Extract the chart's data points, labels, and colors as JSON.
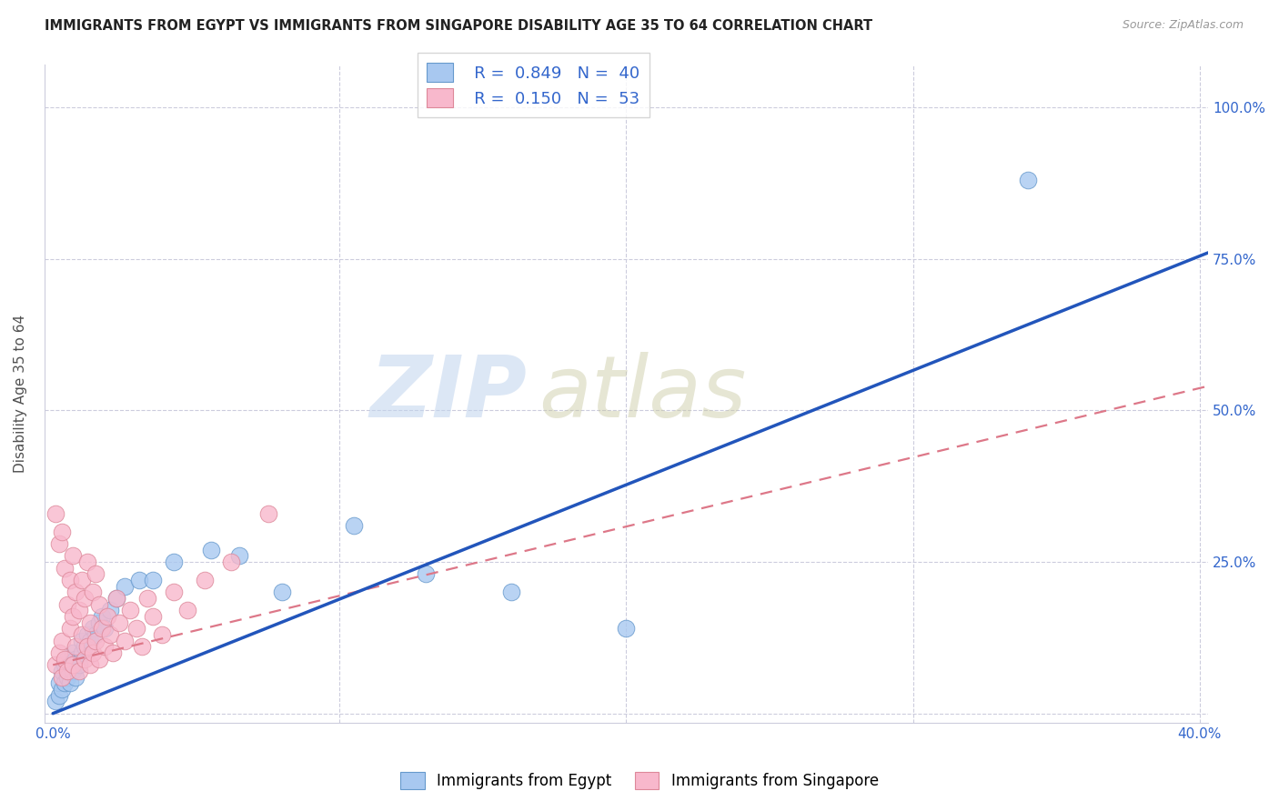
{
  "title": "IMMIGRANTS FROM EGYPT VS IMMIGRANTS FROM SINGAPORE DISABILITY AGE 35 TO 64 CORRELATION CHART",
  "source": "Source: ZipAtlas.com",
  "ylabel": "Disability Age 35 to 64",
  "xlim": [
    -0.003,
    0.403
  ],
  "ylim": [
    -0.015,
    1.07
  ],
  "xticks": [
    0.0,
    0.1,
    0.2,
    0.3,
    0.4
  ],
  "xticklabels": [
    "0.0%",
    "",
    "",
    "",
    "40.0%"
  ],
  "yticks": [
    0.0,
    0.25,
    0.5,
    0.75,
    1.0
  ],
  "yticklabels": [
    "",
    "25.0%",
    "50.0%",
    "75.0%",
    "100.0%"
  ],
  "egypt_color": "#a8c8f0",
  "egypt_edge_color": "#6699cc",
  "singapore_color": "#f8b8cc",
  "singapore_edge_color": "#dd8899",
  "egypt_line_color": "#2255bb",
  "singapore_line_color": "#dd7788",
  "grid_color": "#ccccdd",
  "legend_label_egypt": "Immigrants from Egypt",
  "legend_label_singapore": "Immigrants from Singapore",
  "egypt_x": [
    0.001,
    0.002,
    0.002,
    0.003,
    0.003,
    0.004,
    0.004,
    0.005,
    0.005,
    0.006,
    0.006,
    0.007,
    0.007,
    0.008,
    0.008,
    0.009,
    0.01,
    0.01,
    0.011,
    0.012,
    0.013,
    0.014,
    0.015,
    0.016,
    0.017,
    0.018,
    0.02,
    0.022,
    0.025,
    0.03,
    0.035,
    0.042,
    0.055,
    0.065,
    0.08,
    0.105,
    0.13,
    0.16,
    0.2,
    0.34
  ],
  "egypt_y": [
    0.02,
    0.03,
    0.05,
    0.04,
    0.07,
    0.05,
    0.08,
    0.06,
    0.09,
    0.05,
    0.08,
    0.07,
    0.1,
    0.06,
    0.09,
    0.08,
    0.1,
    0.12,
    0.11,
    0.13,
    0.12,
    0.14,
    0.13,
    0.15,
    0.16,
    0.14,
    0.17,
    0.19,
    0.21,
    0.22,
    0.22,
    0.25,
    0.27,
    0.26,
    0.2,
    0.31,
    0.23,
    0.2,
    0.14,
    0.88
  ],
  "singapore_x": [
    0.001,
    0.001,
    0.002,
    0.002,
    0.003,
    0.003,
    0.003,
    0.004,
    0.004,
    0.005,
    0.005,
    0.006,
    0.006,
    0.007,
    0.007,
    0.007,
    0.008,
    0.008,
    0.009,
    0.009,
    0.01,
    0.01,
    0.011,
    0.011,
    0.012,
    0.012,
    0.013,
    0.013,
    0.014,
    0.014,
    0.015,
    0.015,
    0.016,
    0.016,
    0.017,
    0.018,
    0.019,
    0.02,
    0.021,
    0.022,
    0.023,
    0.025,
    0.027,
    0.029,
    0.031,
    0.033,
    0.035,
    0.038,
    0.042,
    0.047,
    0.053,
    0.062,
    0.075
  ],
  "singapore_y": [
    0.08,
    0.33,
    0.1,
    0.28,
    0.06,
    0.12,
    0.3,
    0.09,
    0.24,
    0.07,
    0.18,
    0.14,
    0.22,
    0.08,
    0.16,
    0.26,
    0.11,
    0.2,
    0.07,
    0.17,
    0.13,
    0.22,
    0.09,
    0.19,
    0.11,
    0.25,
    0.08,
    0.15,
    0.1,
    0.2,
    0.12,
    0.23,
    0.09,
    0.18,
    0.14,
    0.11,
    0.16,
    0.13,
    0.1,
    0.19,
    0.15,
    0.12,
    0.17,
    0.14,
    0.11,
    0.19,
    0.16,
    0.13,
    0.2,
    0.17,
    0.22,
    0.25,
    0.33
  ],
  "egypt_line_x": [
    0.0,
    0.403
  ],
  "egypt_line_y": [
    0.0,
    0.76
  ],
  "singapore_line_x": [
    0.0,
    0.403
  ],
  "singapore_line_y": [
    0.08,
    0.54
  ]
}
